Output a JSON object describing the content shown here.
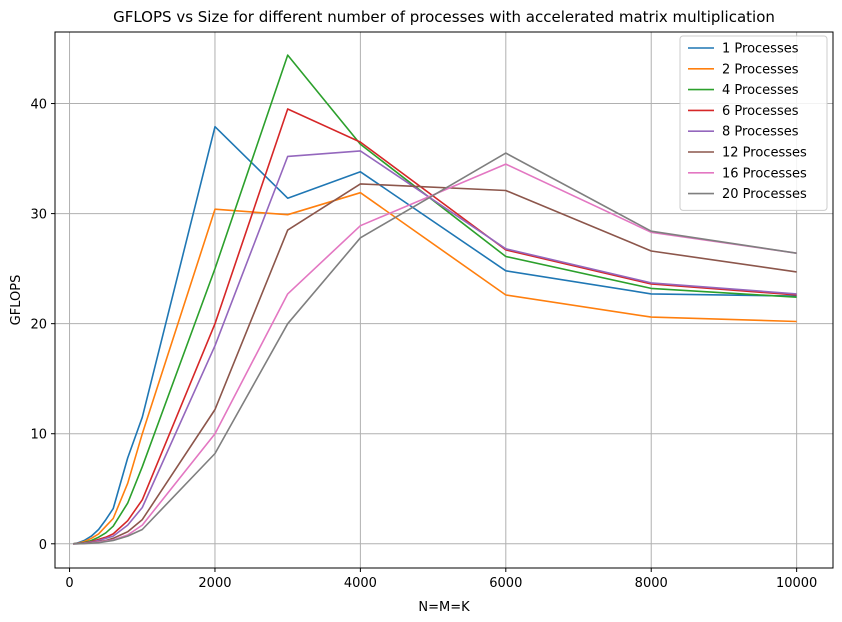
{
  "chart_data": {
    "type": "line",
    "title": "GFLOPS vs Size for different number of processes with accelerated matrix multiplication",
    "xlabel": "N=M=K",
    "ylabel": "GFLOPS",
    "xlim": [
      -200,
      10500
    ],
    "ylim": [
      -2.2,
      46.5
    ],
    "xticks": [
      0,
      2000,
      4000,
      6000,
      8000,
      10000
    ],
    "yticks": [
      0,
      10,
      20,
      30,
      40
    ],
    "grid": true,
    "legend_position": "top-right",
    "x": [
      50,
      100,
      200,
      300,
      400,
      500,
      600,
      800,
      1000,
      2000,
      3000,
      4000,
      6000,
      8000,
      10000
    ],
    "series": [
      {
        "name": "1 Processes",
        "color": "#1f77b4",
        "values": [
          0.0,
          0.05,
          0.3,
          0.7,
          1.3,
          2.2,
          3.2,
          7.8,
          11.5,
          37.9,
          31.4,
          33.8,
          24.8,
          22.7,
          22.5
        ]
      },
      {
        "name": "2 Processes",
        "color": "#ff7f0e",
        "values": [
          0.0,
          0.03,
          0.2,
          0.5,
          0.9,
          1.6,
          2.3,
          5.5,
          10.0,
          30.4,
          29.9,
          31.9,
          22.6,
          20.6,
          20.2
        ]
      },
      {
        "name": "4 Processes",
        "color": "#2ca02c",
        "values": [
          0.0,
          0.02,
          0.12,
          0.3,
          0.6,
          1.0,
          1.6,
          3.7,
          7.0,
          25.0,
          44.4,
          36.3,
          26.1,
          23.2,
          22.4
        ]
      },
      {
        "name": "6 Processes",
        "color": "#d62728",
        "values": [
          0.0,
          0.02,
          0.08,
          0.2,
          0.4,
          0.6,
          0.9,
          2.1,
          4.0,
          20.0,
          39.5,
          36.5,
          26.7,
          23.6,
          22.6
        ]
      },
      {
        "name": "8 Processes",
        "color": "#9467bd",
        "values": [
          0.0,
          0.01,
          0.06,
          0.15,
          0.3,
          0.5,
          0.7,
          1.7,
          3.3,
          18.0,
          35.2,
          35.7,
          26.8,
          23.7,
          22.7
        ]
      },
      {
        "name": "12 Processes",
        "color": "#8c564b",
        "values": [
          0.0,
          0.01,
          0.04,
          0.1,
          0.2,
          0.3,
          0.5,
          1.1,
          2.2,
          12.2,
          28.5,
          32.7,
          32.1,
          26.6,
          24.7
        ]
      },
      {
        "name": "16 Processes",
        "color": "#e377c2",
        "values": [
          0.0,
          0.0,
          0.03,
          0.07,
          0.15,
          0.25,
          0.35,
          0.8,
          1.7,
          10.0,
          22.7,
          28.9,
          34.5,
          28.3,
          26.4
        ]
      },
      {
        "name": "20 Processes",
        "color": "#7f7f7f",
        "values": [
          0.0,
          0.0,
          0.02,
          0.05,
          0.1,
          0.2,
          0.3,
          0.7,
          1.3,
          8.2,
          20.0,
          27.8,
          35.5,
          28.4,
          26.4
        ]
      }
    ]
  }
}
